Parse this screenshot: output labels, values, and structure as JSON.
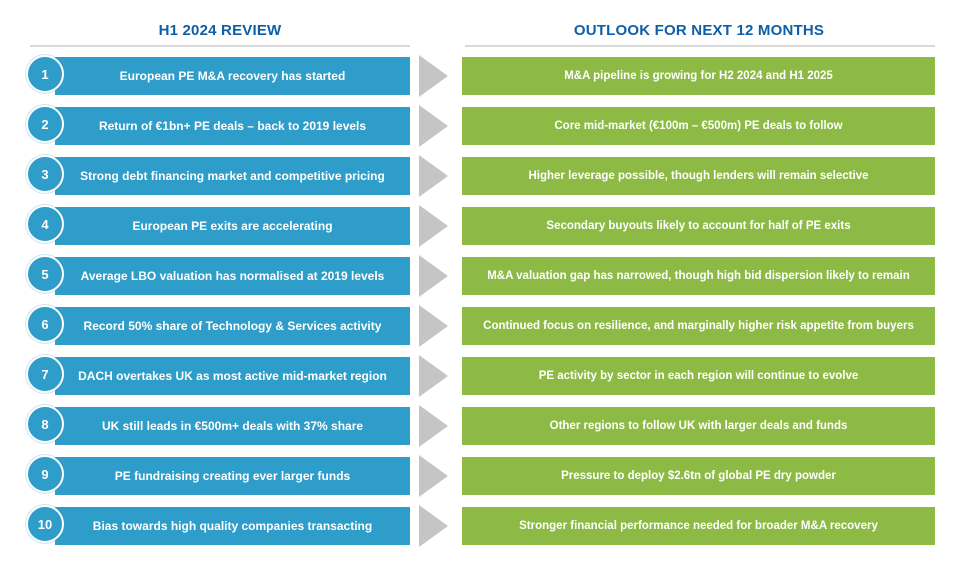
{
  "headers": {
    "left": "H1 2024 REVIEW",
    "right": "OUTLOOK FOR NEXT 12 MONTHS"
  },
  "colors": {
    "review_bar": "#2E9DC9",
    "outlook_bar": "#8CBA45",
    "header_text": "#0E5EA8",
    "arrow": "#C5C5C5",
    "header_rule": "#D9D9D9",
    "bar_text": "#FFFFFF"
  },
  "icons": {
    "arrow": "right-arrow-icon"
  },
  "rows": [
    {
      "num": "1",
      "left": "European PE M&A recovery has started",
      "right": "M&A pipeline is growing for H2 2024 and H1 2025"
    },
    {
      "num": "2",
      "left": "Return of €1bn+ PE deals – back to 2019 levels",
      "right": "Core mid-market (€100m – €500m) PE deals to follow"
    },
    {
      "num": "3",
      "left": "Strong debt financing market and competitive pricing",
      "right": "Higher leverage possible, though lenders will remain selective"
    },
    {
      "num": "4",
      "left": "European PE exits are accelerating",
      "right": "Secondary buyouts likely to account for half of PE exits"
    },
    {
      "num": "5",
      "left": "Average LBO valuation has normalised at 2019 levels",
      "right": "M&A valuation gap has narrowed, though high bid dispersion likely to remain"
    },
    {
      "num": "6",
      "left": "Record 50% share of Technology & Services activity",
      "right": "Continued focus on resilience, and marginally higher risk appetite from buyers"
    },
    {
      "num": "7",
      "left": "DACH overtakes UK as most active mid-market region",
      "right": "PE activity by sector in each region will continue to evolve"
    },
    {
      "num": "8",
      "left": "UK still leads in €500m+ deals with 37% share",
      "right": "Other regions to follow UK with larger deals and funds"
    },
    {
      "num": "9",
      "left": "PE fundraising creating ever larger funds",
      "right": "Pressure to deploy $2.6tn of global PE dry powder"
    },
    {
      "num": "10",
      "left": "Bias towards high quality companies transacting",
      "right": "Stronger financial performance needed for broader M&A recovery"
    }
  ]
}
